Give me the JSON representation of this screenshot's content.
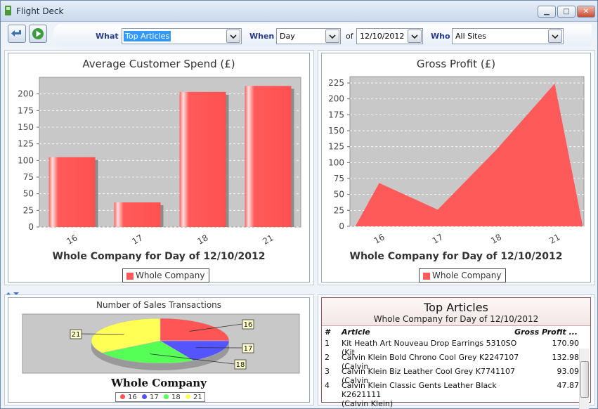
{
  "window": {
    "title": "Flight Deck"
  },
  "toolbar": {
    "what_label": "What",
    "what_value": "Top Articles",
    "when_label": "When",
    "when_value": "Day",
    "of_label": "of",
    "date_value": "12/10/2012",
    "who_label": "Who",
    "who_value": "All Sites"
  },
  "charts": {
    "spend": {
      "title": "Average Customer Spend (£)",
      "caption": "Whole Company for Day of 12/10/2012",
      "legend": "Whole Company"
    },
    "profit": {
      "title": "Gross Profit (£)",
      "caption": "Whole Company for Day of 12/10/2012",
      "legend": "Whole Company"
    },
    "transactions": {
      "title": "Number of Sales Transactions",
      "caption": "Whole Company",
      "legend": [
        "16",
        "17",
        "18",
        "21"
      ]
    }
  },
  "chart_data": [
    {
      "type": "bar",
      "title": "Average Customer Spend (£)",
      "xlabel": "Whole Company for Day of 12/10/2012",
      "categories": [
        "16",
        "17",
        "18",
        "21"
      ],
      "series": [
        {
          "name": "Whole Company",
          "values": [
            105,
            37,
            203,
            212
          ]
        }
      ],
      "ylim": [
        0,
        225
      ],
      "yticks": [
        0,
        25,
        50,
        75,
        100,
        125,
        150,
        175,
        200
      ],
      "legend_position": "bottom",
      "grid": true,
      "color": "#ff5a5a"
    },
    {
      "type": "area",
      "title": "Gross Profit (£)",
      "xlabel": "Whole Company for Day of 12/10/2012",
      "categories": [
        "16",
        "17",
        "18",
        "21"
      ],
      "series": [
        {
          "name": "Whole Company",
          "values": [
            68,
            26,
            120,
            224
          ]
        }
      ],
      "ylim": [
        0,
        235
      ],
      "yticks": [
        0,
        25,
        50,
        75,
        100,
        125,
        150,
        175,
        200,
        225
      ],
      "legend_position": "bottom",
      "grid": true,
      "color": "#ff5a5a"
    },
    {
      "type": "pie",
      "title": "Number of Sales Transactions",
      "xlabel": "Whole Company",
      "categories": [
        "16",
        "17",
        "18",
        "21"
      ],
      "values": [
        25,
        17,
        24,
        34
      ],
      "colors": [
        "#ff5555",
        "#5555ff",
        "#55ff55",
        "#ffff55"
      ],
      "legend_position": "bottom"
    }
  ],
  "top_articles": {
    "title": "Top Articles",
    "subtitle": "Whole Company for Day of 12/10/2012",
    "columns": [
      "#",
      "Article",
      "Gross Profit ..."
    ],
    "rows": [
      {
        "num": "1",
        "article": "Kit Heath Art Nouveau Drop Earrings 5310SO (Kit",
        "profit": "170.90"
      },
      {
        "num": "2",
        "article": "Calvin Klein Bold Chrono Cool Grey K2247107 (Calvin",
        "profit": "132.98"
      },
      {
        "num": "3",
        "article": "Calvin Klein Biz Leather Cool Grey K7741107 (Calvin",
        "profit": "93.09"
      },
      {
        "num": "4",
        "article": "Calvin Klein Classic Gents Leather Black K2621111",
        "article2": "(Calvin Klein)",
        "profit": "47.87"
      }
    ]
  }
}
